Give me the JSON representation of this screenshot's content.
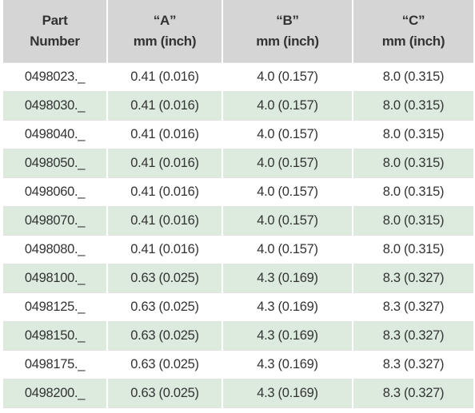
{
  "table": {
    "header": [
      [
        "Part",
        "Number"
      ],
      [
        "“A”",
        "mm (inch)"
      ],
      [
        "“B”",
        "mm (inch)"
      ],
      [
        "“C”",
        "mm (inch)"
      ]
    ],
    "rows": [
      [
        "0498023._",
        "0.41 (0.016)",
        "4.0 (0.157)",
        "8.0 (0.315)"
      ],
      [
        "0498030._",
        "0.41 (0.016)",
        "4.0 (0.157)",
        "8.0 (0.315)"
      ],
      [
        "0498040._",
        "0.41 (0.016)",
        "4.0 (0.157)",
        "8.0 (0.315)"
      ],
      [
        "0498050._",
        "0.41 (0.016)",
        "4.0 (0.157)",
        "8.0 (0.315)"
      ],
      [
        "0498060._",
        "0.41 (0.016)",
        "4.0 (0.157)",
        "8.0 (0.315)"
      ],
      [
        "0498070._",
        "0.41 (0.016)",
        "4.0 (0.157)",
        "8.0 (0.315)"
      ],
      [
        "0498080._",
        "0.41 (0.016)",
        "4.0 (0.157)",
        "8.0 (0.315)"
      ],
      [
        "0498100._",
        "0.63 (0.025)",
        "4.3 (0.169)",
        "8.3 (0.327)"
      ],
      [
        "0498125._",
        "0.63 (0.025)",
        "4.3 (0.169)",
        "8.3 (0.327)"
      ],
      [
        "0498150._",
        "0.63 (0.025)",
        "4.3 (0.169)",
        "8.3 (0.327)"
      ],
      [
        "0498175._",
        "0.63 (0.025)",
        "4.3 (0.169)",
        "8.3 (0.327)"
      ],
      [
        "0498200._",
        "0.63 (0.025)",
        "4.3 (0.169)",
        "8.3 (0.327)"
      ]
    ]
  }
}
